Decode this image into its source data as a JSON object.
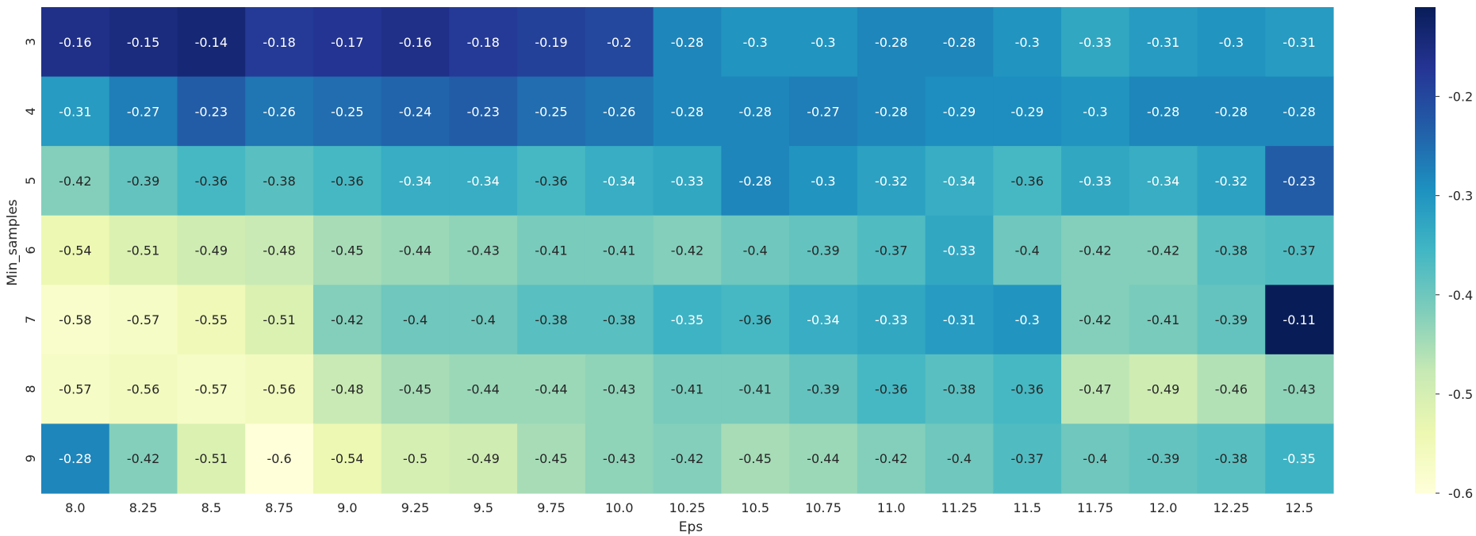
{
  "chart_data": {
    "type": "heatmap",
    "title": "",
    "xlabel": "Eps",
    "ylabel": "Min_samples",
    "x_categories": [
      "8.0",
      "8.25",
      "8.5",
      "8.75",
      "9.0",
      "9.25",
      "9.5",
      "9.75",
      "10.0",
      "10.25",
      "10.5",
      "10.75",
      "11.0",
      "11.25",
      "11.5",
      "11.75",
      "12.0",
      "12.25",
      "12.5"
    ],
    "y_categories": [
      "3",
      "4",
      "5",
      "6",
      "7",
      "8",
      "9"
    ],
    "values": [
      [
        -0.16,
        -0.15,
        -0.14,
        -0.18,
        -0.17,
        -0.16,
        -0.18,
        -0.19,
        -0.2,
        -0.28,
        -0.3,
        -0.3,
        -0.28,
        -0.28,
        -0.3,
        -0.33,
        -0.31,
        -0.3,
        -0.31
      ],
      [
        -0.31,
        -0.27,
        -0.23,
        -0.26,
        -0.25,
        -0.24,
        -0.23,
        -0.25,
        -0.26,
        -0.28,
        -0.28,
        -0.27,
        -0.28,
        -0.29,
        -0.29,
        -0.3,
        -0.28,
        -0.28,
        -0.28
      ],
      [
        -0.42,
        -0.39,
        -0.36,
        -0.38,
        -0.36,
        -0.34,
        -0.34,
        -0.36,
        -0.34,
        -0.33,
        -0.28,
        -0.3,
        -0.32,
        -0.34,
        -0.36,
        -0.33,
        -0.34,
        -0.32,
        -0.23
      ],
      [
        -0.54,
        -0.51,
        -0.49,
        -0.48,
        -0.45,
        -0.44,
        -0.43,
        -0.41,
        -0.41,
        -0.42,
        -0.4,
        -0.39,
        -0.37,
        -0.33,
        -0.4,
        -0.42,
        -0.42,
        -0.38,
        -0.37
      ],
      [
        -0.58,
        -0.57,
        -0.55,
        -0.51,
        -0.42,
        -0.4,
        -0.4,
        -0.38,
        -0.38,
        -0.35,
        -0.36,
        -0.34,
        -0.33,
        -0.31,
        -0.3,
        -0.42,
        -0.41,
        -0.39,
        -0.11
      ],
      [
        -0.57,
        -0.56,
        -0.57,
        -0.56,
        -0.48,
        -0.45,
        -0.44,
        -0.44,
        -0.43,
        -0.41,
        -0.41,
        -0.39,
        -0.36,
        -0.38,
        -0.36,
        -0.47,
        -0.49,
        -0.46,
        -0.43
      ],
      [
        -0.28,
        -0.42,
        -0.51,
        -0.6,
        -0.54,
        -0.5,
        -0.49,
        -0.45,
        -0.43,
        -0.42,
        -0.45,
        -0.44,
        -0.42,
        -0.4,
        -0.37,
        -0.4,
        -0.39,
        -0.38,
        -0.35
      ]
    ],
    "vmin": -0.6,
    "vmax": -0.11,
    "colormap": "YlGnBu",
    "colormap_stops": [
      "#ffffd9",
      "#edf8b1",
      "#c7e9b4",
      "#7fcdbb",
      "#41b6c4",
      "#1d91c0",
      "#225ea8",
      "#253494",
      "#081d58"
    ],
    "colorbar_ticks": [
      -0.6,
      -0.5,
      -0.4,
      -0.3,
      -0.2
    ],
    "colorbar_tick_labels": [
      "-0.6",
      "-0.5",
      "-0.4",
      "-0.3",
      "-0.2"
    ],
    "grid": false,
    "legend": "colorbar right"
  }
}
